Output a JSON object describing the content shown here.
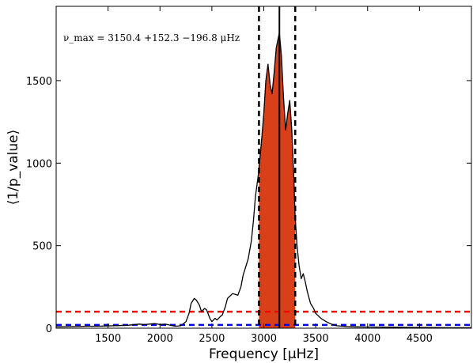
{
  "chart_data": {
    "type": "line",
    "xlabel": "Frequency [μHz]",
    "ylabel": "⟨1/p_value⟩",
    "xlim": [
      1000,
      5000
    ],
    "ylim": [
      0,
      1950
    ],
    "xticks": [
      "1500",
      "2000",
      "2500",
      "3000",
      "3500",
      "4000",
      "4500"
    ],
    "yticks": [
      "0",
      "500",
      "1000",
      "1500"
    ],
    "grid": false,
    "annotation": "ν_max = 3150.4 +152.3 −196.8 μHz",
    "numax": 3150.4,
    "numax_upper": 3302.7,
    "numax_lower": 2953.6,
    "fill_range": [
      2953.6,
      3302.7
    ],
    "series": [
      {
        "x": [
          1000,
          1100,
          1200,
          1300,
          1400,
          1500,
          1600,
          1700,
          1800,
          1850,
          1900,
          1950,
          2000,
          2050,
          2100,
          2150,
          2200,
          2250,
          2280,
          2300,
          2330,
          2350,
          2380,
          2400,
          2430,
          2450,
          2480,
          2500,
          2530,
          2550,
          2580,
          2600,
          2630,
          2650,
          2700,
          2750,
          2780,
          2800,
          2850,
          2880,
          2900,
          2920,
          2950,
          2980,
          3000,
          3020,
          3040,
          3060,
          3080,
          3100,
          3120,
          3150,
          3170,
          3190,
          3210,
          3230,
          3250,
          3270,
          3290,
          3300,
          3320,
          3340,
          3360,
          3380,
          3400,
          3420,
          3450,
          3480,
          3500,
          3550,
          3600,
          3650,
          3700,
          3800,
          3900,
          4000,
          4200,
          4400,
          4600,
          4800,
          5000
        ],
        "y": [
          8,
          9,
          10,
          12,
          12,
          14,
          16,
          18,
          25,
          22,
          25,
          28,
          22,
          25,
          18,
          12,
          15,
          40,
          90,
          150,
          180,
          170,
          140,
          100,
          120,
          110,
          60,
          40,
          60,
          50,
          70,
          80,
          130,
          180,
          210,
          200,
          250,
          320,
          420,
          530,
          650,
          800,
          940,
          1150,
          1300,
          1500,
          1600,
          1480,
          1420,
          1550,
          1700,
          1790,
          1650,
          1400,
          1200,
          1300,
          1380,
          1200,
          900,
          700,
          500,
          380,
          300,
          330,
          280,
          220,
          150,
          120,
          90,
          60,
          40,
          25,
          15,
          10,
          8,
          7,
          6,
          5,
          4,
          3,
          3
        ]
      }
    ],
    "hlines": [
      {
        "y": 100,
        "color": "#ff0000",
        "style": "dashed"
      },
      {
        "y": 20,
        "color": "#0000ff",
        "style": "dashed"
      }
    ],
    "colors": {
      "line": "#000000",
      "fill": "#d9401a"
    }
  }
}
